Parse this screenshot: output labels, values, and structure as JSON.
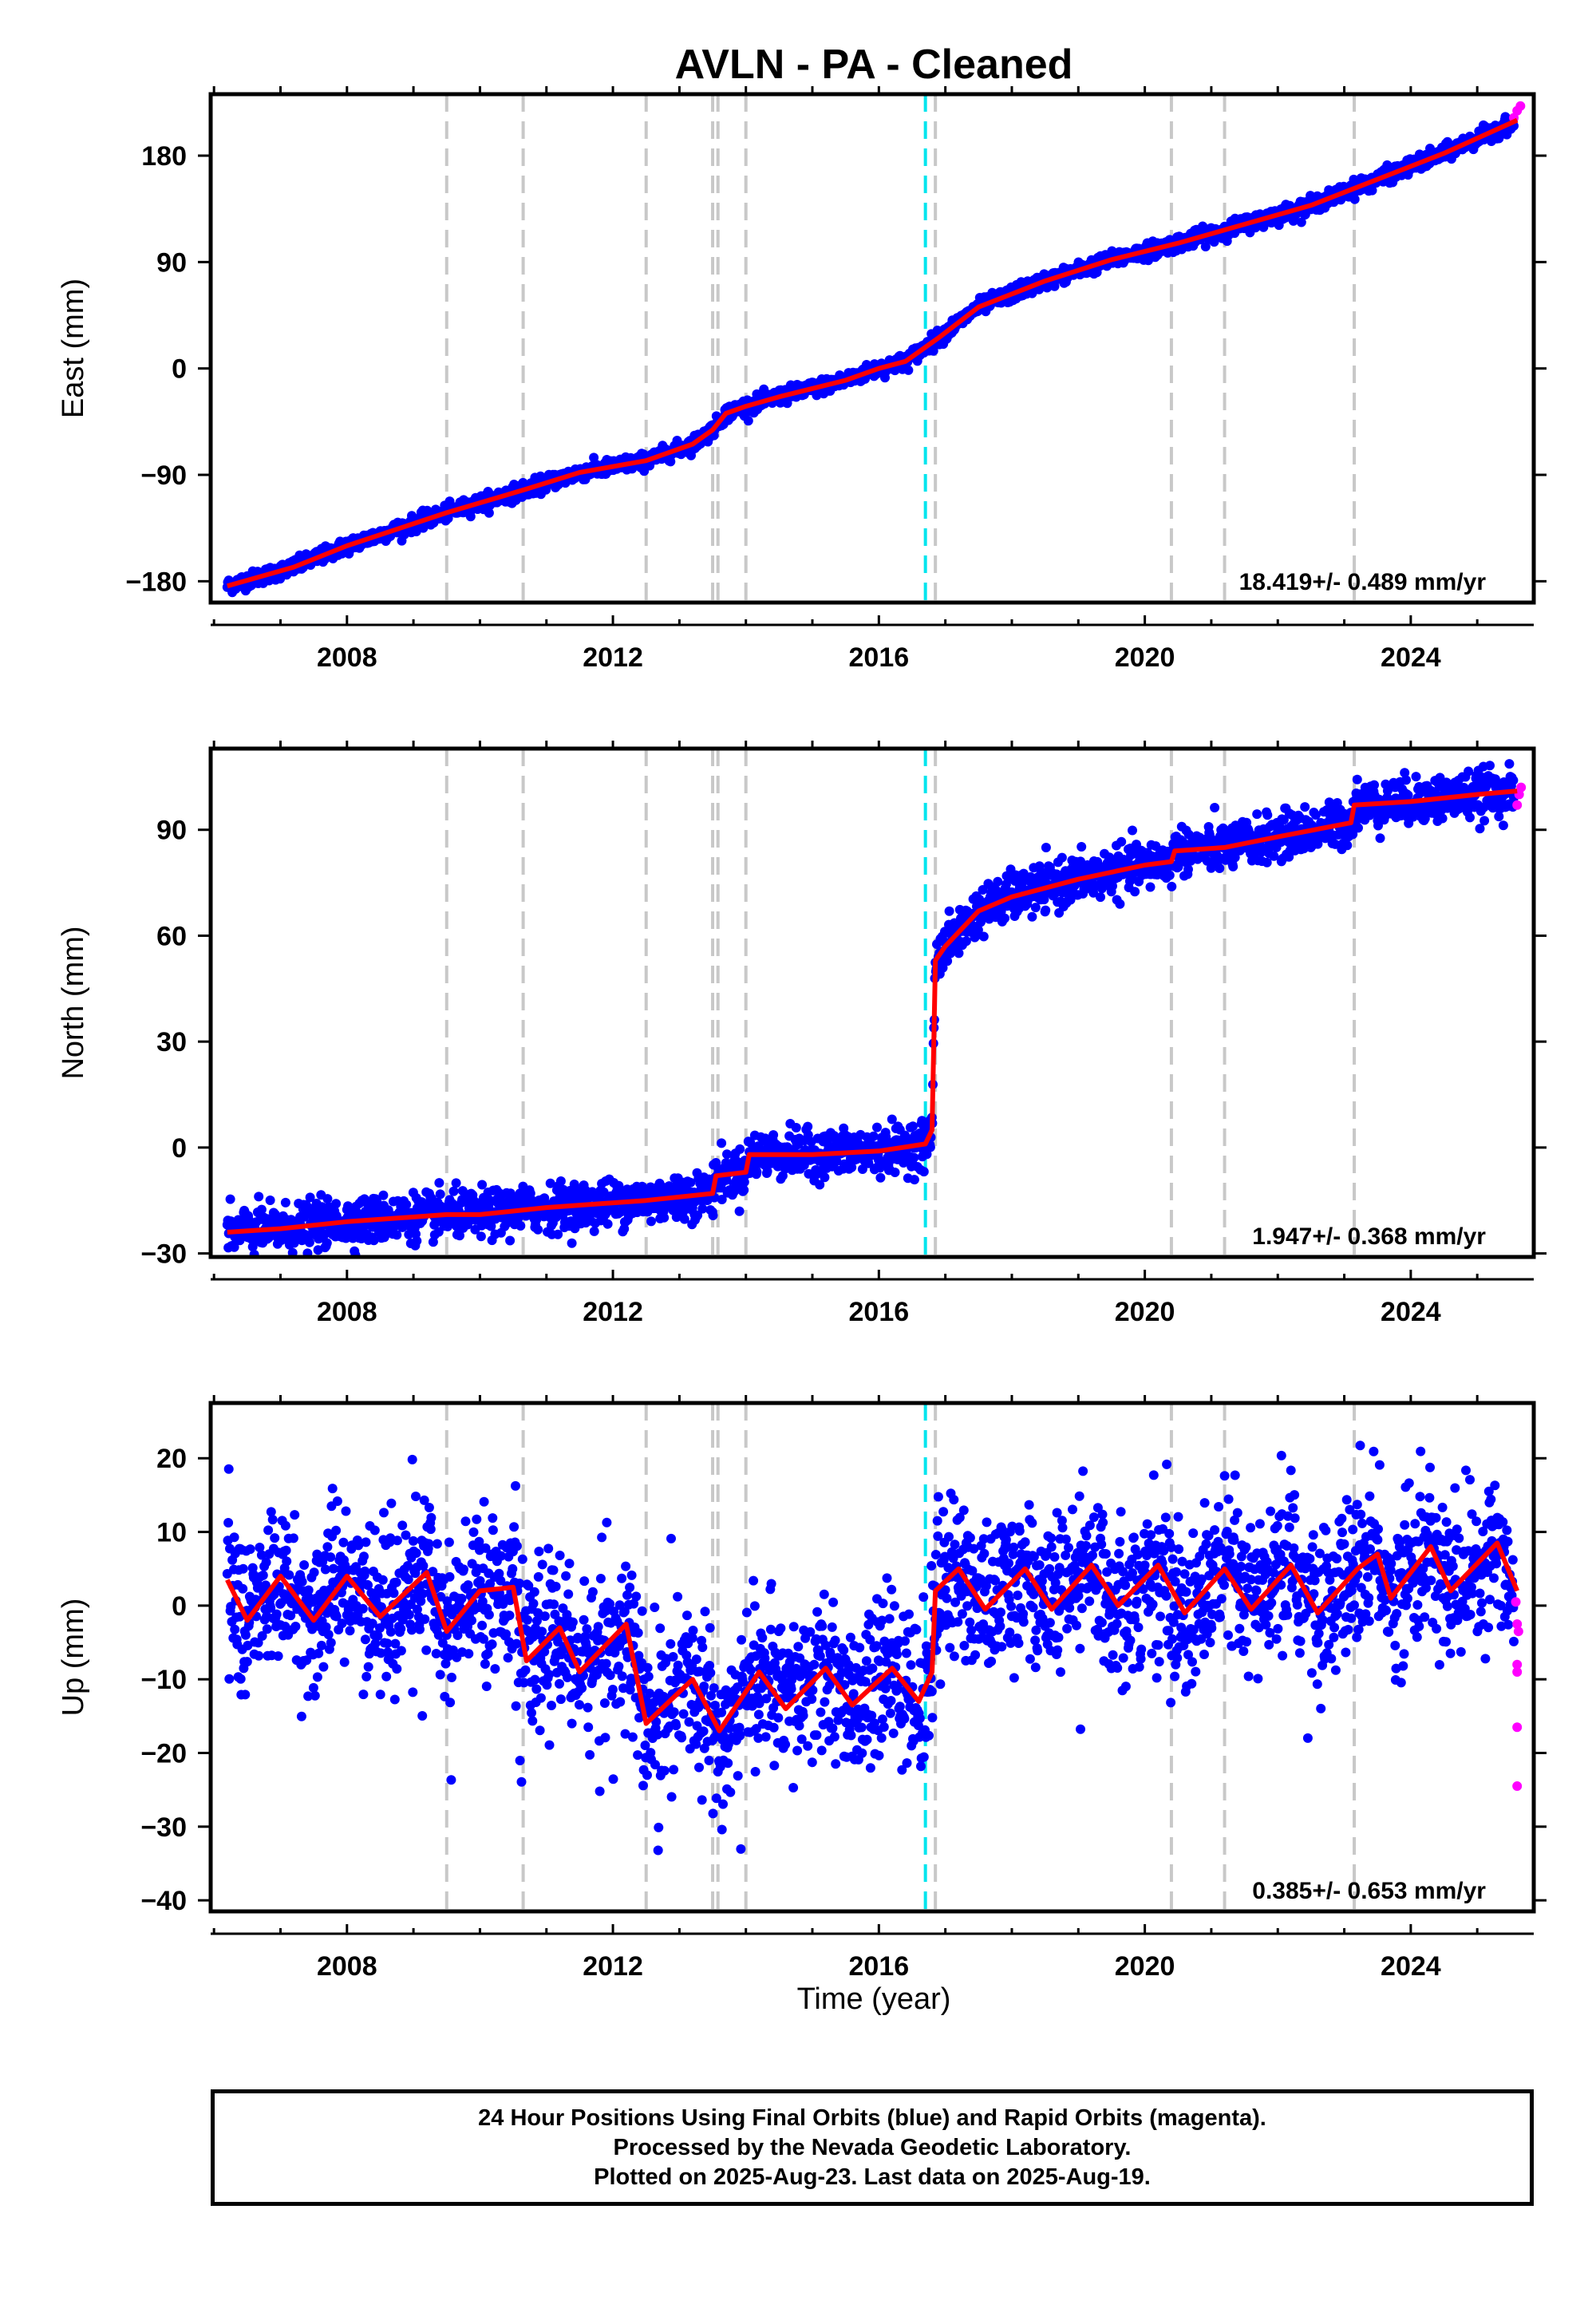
{
  "title": "AVLN  - PA - Cleaned",
  "x_axis": {
    "label": "Time (year)",
    "ticks": [
      2008,
      2012,
      2016,
      2020,
      2024
    ]
  },
  "footer": {
    "lines": [
      "24 Hour Positions Using Final Orbits (blue) and Rapid Orbits (magenta).",
      "Processed by the Nevada Geodetic Laboratory.",
      "Plotted on 2025-Aug-23. Last data on 2025-Aug-19."
    ]
  },
  "colors": {
    "final_orbits": "#0000ff",
    "rapid_orbits": "#ff00ff",
    "model": "#ff0000",
    "equipment_change": "#c8c8c8",
    "earthquake": "#00e5ee"
  },
  "chart_data": [
    {
      "type": "scatter",
      "panel": "east",
      "ylabel": "East (mm)",
      "xlim": [
        2005.95,
        2025.85
      ],
      "ylim": [
        -198,
        232
      ],
      "yticks": [
        -180,
        -90,
        0,
        90,
        180
      ],
      "rate_text": "18.419+/- 0.489 mm/yr",
      "model_points": [
        [
          2006.2,
          -184
        ],
        [
          2007.2,
          -168
        ],
        [
          2008.0,
          -150
        ],
        [
          2009.5,
          -122
        ],
        [
          2010.7,
          -102
        ],
        [
          2011.5,
          -88
        ],
        [
          2012.5,
          -78
        ],
        [
          2013.2,
          -64
        ],
        [
          2013.5,
          -52
        ],
        [
          2013.7,
          -38
        ],
        [
          2014.0,
          -32
        ],
        [
          2014.5,
          -24
        ],
        [
          2015.5,
          -10
        ],
        [
          2016.0,
          0
        ],
        [
          2016.4,
          6
        ],
        [
          2016.7,
          18
        ],
        [
          2016.9,
          26
        ],
        [
          2017.5,
          52
        ],
        [
          2018.5,
          74
        ],
        [
          2019.5,
          92
        ],
        [
          2020.5,
          106
        ],
        [
          2021.5,
          122
        ],
        [
          2022.5,
          138
        ],
        [
          2023.5,
          160
        ],
        [
          2024.5,
          182
        ],
        [
          2025.6,
          210
        ]
      ],
      "rapid_points": [
        [
          2025.55,
          212
        ],
        [
          2025.6,
          218
        ],
        [
          2025.65,
          222
        ]
      ]
    },
    {
      "type": "scatter",
      "panel": "north",
      "ylabel": "North (mm)",
      "xlim": [
        2005.95,
        2025.85
      ],
      "ylim": [
        -31,
        113
      ],
      "yticks": [
        -30,
        0,
        30,
        60,
        90
      ],
      "rate_text": "1.947+/- 0.368 mm/yr",
      "model_points": [
        [
          2006.2,
          -24
        ],
        [
          2007.0,
          -23
        ],
        [
          2008.0,
          -21
        ],
        [
          2009.5,
          -19
        ],
        [
          2010.0,
          -19
        ],
        [
          2011.0,
          -17
        ],
        [
          2012.5,
          -15
        ],
        [
          2013.0,
          -14
        ],
        [
          2013.5,
          -13
        ],
        [
          2013.55,
          -8
        ],
        [
          2014.0,
          -7
        ],
        [
          2014.05,
          -2
        ],
        [
          2015.0,
          -2
        ],
        [
          2016.0,
          -1
        ],
        [
          2016.7,
          1
        ],
        [
          2016.8,
          5
        ],
        [
          2016.85,
          53
        ],
        [
          2017.0,
          57
        ],
        [
          2017.5,
          67
        ],
        [
          2018.0,
          71
        ],
        [
          2019.0,
          76
        ],
        [
          2020.0,
          80
        ],
        [
          2020.4,
          81
        ],
        [
          2020.45,
          84
        ],
        [
          2021.2,
          85
        ],
        [
          2022.0,
          88
        ],
        [
          2023.1,
          92
        ],
        [
          2023.15,
          97
        ],
        [
          2024.0,
          98
        ],
        [
          2025.0,
          100
        ],
        [
          2025.6,
          101
        ]
      ],
      "rapid_points": [
        [
          2025.6,
          97
        ],
        [
          2025.63,
          100
        ],
        [
          2025.66,
          102
        ]
      ]
    },
    {
      "type": "scatter",
      "panel": "up",
      "ylabel": "Up (mm)",
      "xlim": [
        2005.95,
        2025.85
      ],
      "ylim": [
        -41.5,
        27.5
      ],
      "yticks": [
        -40,
        -30,
        -20,
        -10,
        0,
        10,
        20
      ],
      "rate_text": "0.385+/- 0.653 mm/yr",
      "model_points": [
        [
          2006.2,
          3.5
        ],
        [
          2006.5,
          -2
        ],
        [
          2007.0,
          4
        ],
        [
          2007.5,
          -2
        ],
        [
          2008.0,
          4
        ],
        [
          2008.5,
          -1.5
        ],
        [
          2009.2,
          4.5
        ],
        [
          2009.5,
          -3.5
        ],
        [
          2010.0,
          2
        ],
        [
          2010.5,
          2.5
        ],
        [
          2010.7,
          -7.5
        ],
        [
          2011.2,
          -3
        ],
        [
          2011.5,
          -9
        ],
        [
          2012.2,
          -2.5
        ],
        [
          2012.5,
          -16
        ],
        [
          2013.2,
          -10
        ],
        [
          2013.6,
          -17
        ],
        [
          2014.2,
          -9
        ],
        [
          2014.6,
          -14
        ],
        [
          2015.2,
          -8.5
        ],
        [
          2015.6,
          -13.5
        ],
        [
          2016.2,
          -8.5
        ],
        [
          2016.6,
          -13
        ],
        [
          2016.8,
          -9
        ],
        [
          2016.85,
          2
        ],
        [
          2017.2,
          5
        ],
        [
          2017.6,
          -0.5
        ],
        [
          2018.2,
          5
        ],
        [
          2018.6,
          -0.5
        ],
        [
          2019.2,
          5.5
        ],
        [
          2019.6,
          0
        ],
        [
          2020.2,
          5.5
        ],
        [
          2020.6,
          -1
        ],
        [
          2021.2,
          5
        ],
        [
          2021.6,
          -0.5
        ],
        [
          2022.2,
          5.5
        ],
        [
          2022.6,
          -1
        ],
        [
          2023.2,
          5
        ],
        [
          2023.5,
          7
        ],
        [
          2023.7,
          1
        ],
        [
          2024.3,
          8
        ],
        [
          2024.6,
          2
        ],
        [
          2025.3,
          8.5
        ],
        [
          2025.6,
          2
        ]
      ],
      "rapid_points": [
        [
          2025.6,
          -2.5
        ],
        [
          2025.6,
          -8
        ],
        [
          2025.6,
          -9
        ],
        [
          2025.6,
          -16.5
        ],
        [
          2025.6,
          -24.5
        ],
        [
          2025.62,
          -3.5
        ],
        [
          2025.58,
          0.5
        ]
      ]
    }
  ],
  "event_lines": {
    "equipment_change_years": [
      2009.5,
      2010.65,
      2012.5,
      2013.5,
      2013.58,
      2014.0,
      2016.85,
      2020.4,
      2021.2,
      2023.15
    ],
    "earthquake_years": [
      2016.7
    ]
  }
}
